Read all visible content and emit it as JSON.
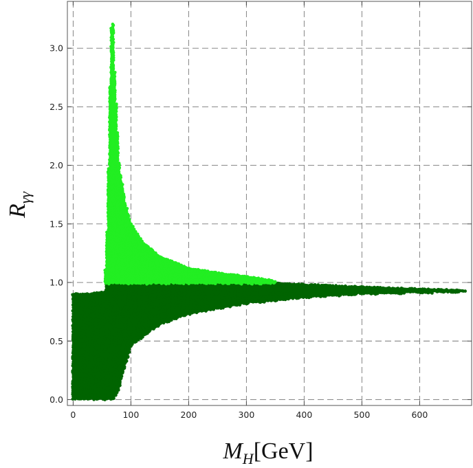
{
  "chart_data": {
    "type": "scatter",
    "title": "",
    "xlabel": "M_H[GeV]",
    "xlabel_main": "M",
    "xlabel_sub": "H",
    "xlabel_unit": "[GeV]",
    "ylabel": "R_γγ",
    "ylabel_main": "R",
    "ylabel_sub": "γγ",
    "xlim": [
      -10,
      690
    ],
    "ylim": [
      -0.05,
      3.4
    ],
    "xticks": [
      0,
      100,
      200,
      300,
      400,
      500,
      600
    ],
    "xtick_labels": [
      "0",
      "100",
      "200",
      "300",
      "400",
      "500",
      "600"
    ],
    "yticks": [
      0.0,
      0.5,
      1.0,
      1.5,
      2.0,
      2.5,
      3.0
    ],
    "ytick_labels": [
      "0.0",
      "0.5",
      "1.0",
      "1.5",
      "2.0",
      "2.5",
      "3.0"
    ],
    "grid": true,
    "grid_style": "dashed",
    "legend": "none",
    "series": [
      {
        "color": "#006400",
        "region": "R_γγ < 1",
        "upper_boundary": [
          {
            "x": 0,
            "y": 0.9
          },
          {
            "x": 30,
            "y": 0.9
          },
          {
            "x": 55,
            "y": 0.92
          },
          {
            "x": 56,
            "y": 0.99
          },
          {
            "x": 350,
            "y": 0.99
          },
          {
            "x": 450,
            "y": 0.97
          },
          {
            "x": 550,
            "y": 0.95
          },
          {
            "x": 680,
            "y": 0.93
          }
        ],
        "lower_boundary": [
          {
            "x": 0,
            "y": 0.0
          },
          {
            "x": 70,
            "y": 0.0
          },
          {
            "x": 80,
            "y": 0.1
          },
          {
            "x": 100,
            "y": 0.46
          },
          {
            "x": 150,
            "y": 0.64
          },
          {
            "x": 200,
            "y": 0.73
          },
          {
            "x": 300,
            "y": 0.82
          },
          {
            "x": 400,
            "y": 0.87
          },
          {
            "x": 500,
            "y": 0.9
          },
          {
            "x": 600,
            "y": 0.91
          },
          {
            "x": 680,
            "y": 0.92
          }
        ]
      },
      {
        "color": "#22EE22",
        "region": "R_γγ > 1",
        "upper_boundary": [
          {
            "x": 56,
            "y": 1.1
          },
          {
            "x": 60,
            "y": 1.6
          },
          {
            "x": 63,
            "y": 2.5
          },
          {
            "x": 66,
            "y": 3.1
          },
          {
            "x": 68,
            "y": 3.38
          },
          {
            "x": 72,
            "y": 2.75
          },
          {
            "x": 80,
            "y": 1.98
          },
          {
            "x": 90,
            "y": 1.68
          },
          {
            "x": 100,
            "y": 1.5
          },
          {
            "x": 120,
            "y": 1.34
          },
          {
            "x": 150,
            "y": 1.22
          },
          {
            "x": 200,
            "y": 1.12
          },
          {
            "x": 250,
            "y": 1.08
          },
          {
            "x": 300,
            "y": 1.05
          },
          {
            "x": 350,
            "y": 1.01
          }
        ],
        "lower_boundary": [
          {
            "x": 56,
            "y": 0.99
          },
          {
            "x": 350,
            "y": 0.99
          }
        ]
      }
    ]
  }
}
